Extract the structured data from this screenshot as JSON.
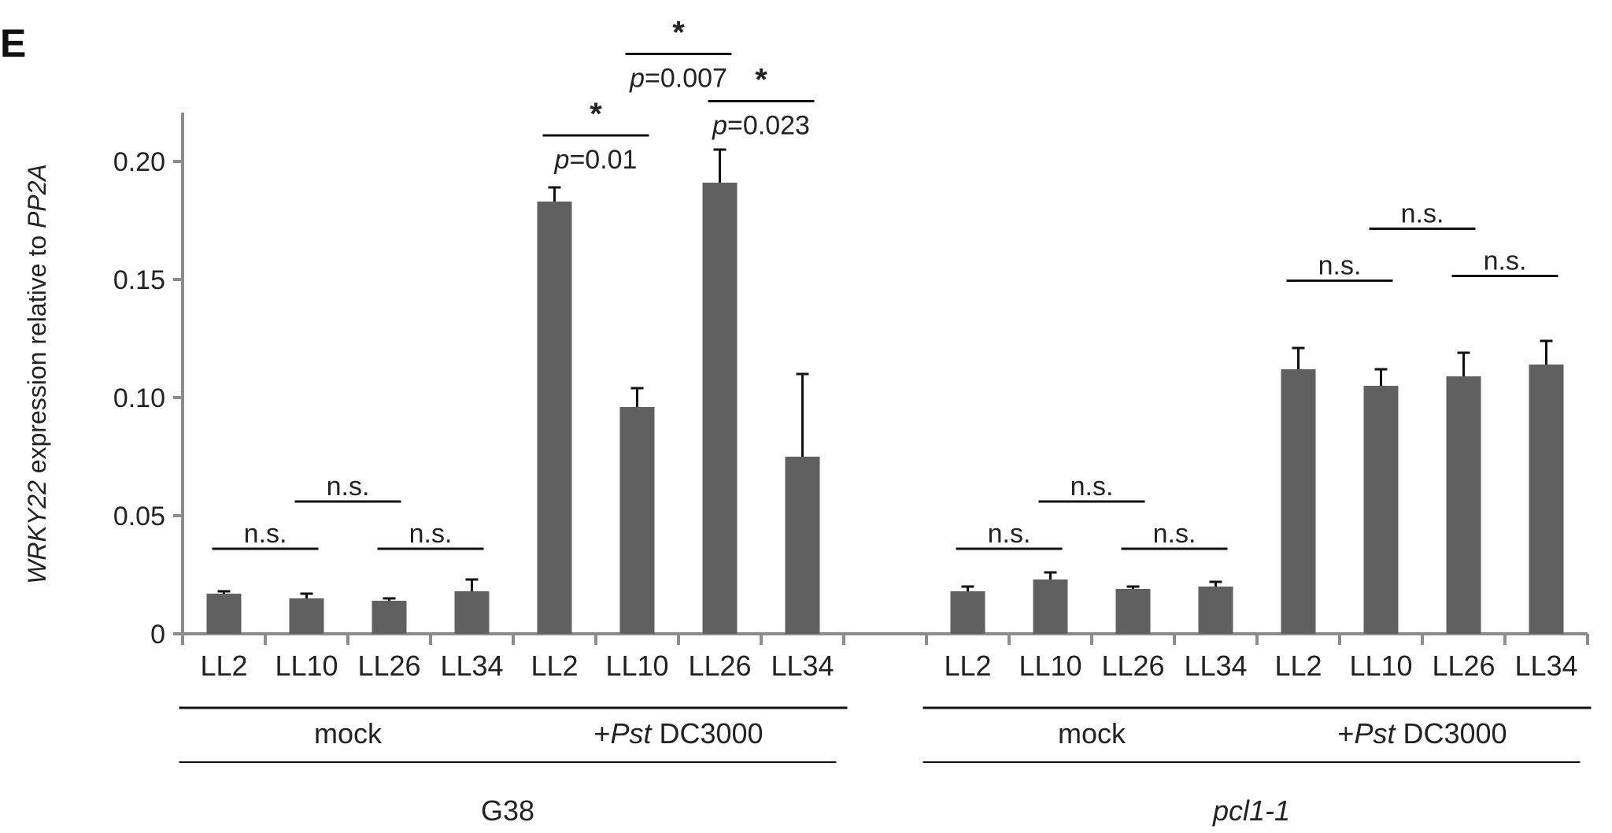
{
  "chart_data": {
    "type": "bar",
    "panel_label": "E",
    "ylabel_parts": [
      {
        "text": "WRKY22",
        "italic": true
      },
      {
        "text": " expression relative to ",
        "italic": false
      },
      {
        "text": "PP2A",
        "italic": true
      }
    ],
    "ylim": [
      0,
      0.22
    ],
    "yticks": [
      0,
      0.05,
      0.1,
      0.15,
      0.2
    ],
    "ytick_labels": [
      "0",
      "0.05",
      "0.10",
      "0.15",
      "0.20"
    ],
    "colors": {
      "bar": "#606060",
      "axis": "#8c8c8c",
      "line": "#111111"
    },
    "bars": [
      {
        "label": "LL2",
        "genotype": "G38",
        "treatment": "mock",
        "value": 0.017,
        "error": 0.001
      },
      {
        "label": "LL10",
        "genotype": "G38",
        "treatment": "mock",
        "value": 0.015,
        "error": 0.002
      },
      {
        "label": "LL26",
        "genotype": "G38",
        "treatment": "mock",
        "value": 0.014,
        "error": 0.001
      },
      {
        "label": "LL34",
        "genotype": "G38",
        "treatment": "mock",
        "value": 0.018,
        "error": 0.005
      },
      {
        "label": "LL2",
        "genotype": "G38",
        "treatment": "+Pst DC3000",
        "value": 0.183,
        "error": 0.006
      },
      {
        "label": "LL10",
        "genotype": "G38",
        "treatment": "+Pst DC3000",
        "value": 0.096,
        "error": 0.008
      },
      {
        "label": "LL26",
        "genotype": "G38",
        "treatment": "+Pst DC3000",
        "value": 0.191,
        "error": 0.014
      },
      {
        "label": "LL34",
        "genotype": "G38",
        "treatment": "+Pst DC3000",
        "value": 0.075,
        "error": 0.035
      },
      {
        "label": "LL2",
        "genotype": "pcl1-1",
        "treatment": "mock",
        "value": 0.018,
        "error": 0.002
      },
      {
        "label": "LL10",
        "genotype": "pcl1-1",
        "treatment": "mock",
        "value": 0.023,
        "error": 0.003
      },
      {
        "label": "LL26",
        "genotype": "pcl1-1",
        "treatment": "mock",
        "value": 0.019,
        "error": 0.001
      },
      {
        "label": "LL34",
        "genotype": "pcl1-1",
        "treatment": "mock",
        "value": 0.02,
        "error": 0.002
      },
      {
        "label": "LL2",
        "genotype": "pcl1-1",
        "treatment": "+Pst DC3000",
        "value": 0.112,
        "error": 0.009
      },
      {
        "label": "LL10",
        "genotype": "pcl1-1",
        "treatment": "+Pst DC3000",
        "value": 0.105,
        "error": 0.007
      },
      {
        "label": "LL26",
        "genotype": "pcl1-1",
        "treatment": "+Pst DC3000",
        "value": 0.109,
        "error": 0.01
      },
      {
        "label": "LL34",
        "genotype": "pcl1-1",
        "treatment": "+Pst DC3000",
        "value": 0.114,
        "error": 0.01
      }
    ],
    "treatment_groups": [
      {
        "parts": [
          {
            "text": "mock",
            "italic": false
          }
        ],
        "bars": [
          0,
          3
        ]
      },
      {
        "parts": [
          {
            "text": "+",
            "italic": false
          },
          {
            "text": "Pst",
            "italic": true
          },
          {
            "text": " DC3000",
            "italic": false
          }
        ],
        "bars": [
          4,
          7
        ]
      },
      {
        "parts": [
          {
            "text": "mock",
            "italic": false
          }
        ],
        "bars": [
          8,
          11
        ]
      },
      {
        "parts": [
          {
            "text": "+",
            "italic": false
          },
          {
            "text": "Pst",
            "italic": true
          },
          {
            "text": " DC3000",
            "italic": false
          }
        ],
        "bars": [
          12,
          15
        ]
      }
    ],
    "genotype_groups": [
      {
        "label": "G38",
        "italic": false,
        "bars": [
          0,
          7
        ]
      },
      {
        "label": "pcl1-1",
        "italic": true,
        "bars": [
          8,
          15
        ]
      }
    ],
    "comparisons": [
      {
        "from": 0,
        "to": 1,
        "level": 0.036,
        "mark": "n.s."
      },
      {
        "from": 1,
        "to": 2,
        "level": 0.056,
        "mark": "n.s."
      },
      {
        "from": 2,
        "to": 3,
        "level": 0.036,
        "mark": "n.s."
      },
      {
        "from": 4,
        "to": 5,
        "level": 0.211,
        "mark": "*",
        "p": "=0.01"
      },
      {
        "from": 5,
        "to": 6,
        "level": 0.2455,
        "mark": "*",
        "p": "=0.007"
      },
      {
        "from": 6,
        "to": 7,
        "level": 0.2255,
        "mark": "*",
        "p": "=0.023"
      },
      {
        "from": 8,
        "to": 9,
        "level": 0.036,
        "mark": "n.s."
      },
      {
        "from": 9,
        "to": 10,
        "level": 0.056,
        "mark": "n.s."
      },
      {
        "from": 10,
        "to": 11,
        "level": 0.036,
        "mark": "n.s."
      },
      {
        "from": 12,
        "to": 13,
        "level": 0.1495,
        "mark": "n.s."
      },
      {
        "from": 13,
        "to": 14,
        "level": 0.1715,
        "mark": "n.s."
      },
      {
        "from": 14,
        "to": 15,
        "level": 0.1515,
        "mark": "n.s."
      }
    ],
    "p_prefix": "p"
  }
}
